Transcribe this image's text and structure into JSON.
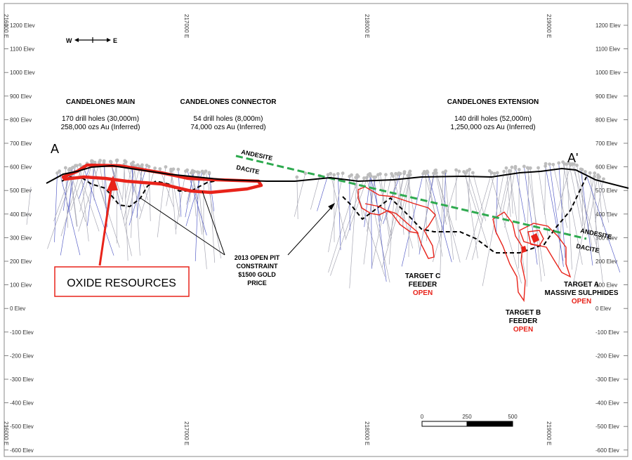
{
  "section": {
    "end_left": "A",
    "end_right": "A'",
    "direction": {
      "west": "W",
      "east": "E"
    }
  },
  "elevation_labels": [
    "1200 Elev",
    "1100 Elev",
    "1000 Elev",
    "900 Elev",
    "800 Elev",
    "700 Elev",
    "600 Elev",
    "500 Elev",
    "400 Elev",
    "300 Elev",
    "200 Elev",
    "100 Elev",
    "0 Elev",
    "-100 Elev",
    "-200 Elev",
    "-300 Elev",
    "-400 Elev",
    "-500 Elev",
    "-600 Elev"
  ],
  "easting_labels": [
    "216000 E",
    "217000 E",
    "218000 E",
    "219000 E"
  ],
  "zones": [
    {
      "title": "CANDELONES MAIN",
      "holes": "170 drill holes (30,000m)",
      "resource": "258,000 ozs Au (Inferred)"
    },
    {
      "title": "CANDELONES CONNECTOR",
      "holes": "54 drill holes (8,000m)",
      "resource": "74,000 ozs Au (Inferred)"
    },
    {
      "title": "CANDELONES EXTENSION",
      "holes": "140 drill holes (52,000m)",
      "resource": "1,250,000 ozs Au (Inferred)"
    }
  ],
  "lithology": {
    "upper": "ANDESITE",
    "lower": "DACITE"
  },
  "pit_constraint": [
    "2013 OPEN PIT",
    "CONSTRAINT",
    "$1500  GOLD",
    "PRICE"
  ],
  "oxide_label": "OXIDE RESOURCES",
  "targets": {
    "c": {
      "line1": "TARGET C",
      "line2": "FEEDER",
      "status": "OPEN"
    },
    "b": {
      "line1": "TARGET B",
      "line2": "FEEDER",
      "status": "OPEN"
    },
    "a": {
      "line1": "TARGET A",
      "line2": "MASSIVE SULPHIDES",
      "status": "OPEN"
    }
  },
  "scale_bar": {
    "labels": [
      "0",
      "250",
      "500"
    ]
  },
  "colors": {
    "ore_outline": "#e8231a",
    "pit": "#000000",
    "contact": "#2eaa4f",
    "drillhole": "#a8a8b4"
  }
}
